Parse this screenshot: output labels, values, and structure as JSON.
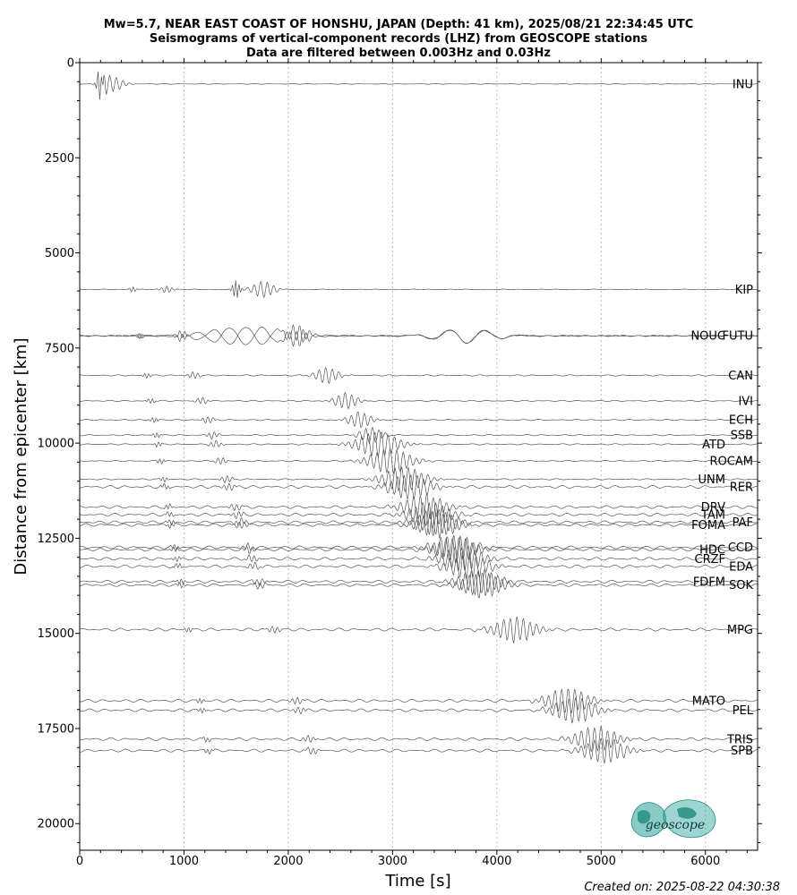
{
  "chart_data": {
    "type": "line",
    "title": [
      "Mw=5.7, NEAR EAST COAST OF HONSHU, JAPAN (Depth: 41 km), 2025/08/21 22:34:45 UTC",
      "Seismograms of vertical-component records (LHZ) from GEOSCOPE stations",
      "Data are filtered between 0.003Hz and 0.03Hz"
    ],
    "xlabel": "Time [s]",
    "ylabel": "Distance from epicenter [km]",
    "xlim": [
      0,
      6500
    ],
    "ylim": [
      20700,
      0
    ],
    "xticks": [
      0,
      1000,
      2000,
      3000,
      4000,
      5000,
      6000
    ],
    "yticks": [
      0,
      2500,
      5000,
      7500,
      10000,
      12500,
      15000,
      17500,
      20000
    ],
    "x_grid": true,
    "y_grid": false,
    "footer": "Created on: 2025-08-22 04:30:38",
    "logo_text": "geoscope",
    "logo_color": "#2aa296",
    "trace_color": "#555555",
    "stations": [
      {
        "name": "INU",
        "distance": 560,
        "label_right": true
      },
      {
        "name": "KIP",
        "distance": 5960,
        "label_right": true
      },
      {
        "name": "NOUC",
        "distance": 7180,
        "label_right": false
      },
      {
        "name": "FUTU",
        "distance": 7180,
        "label_right": true
      },
      {
        "name": "CAN",
        "distance": 8220,
        "label_right": true
      },
      {
        "name": "IVI",
        "distance": 8890,
        "label_right": true
      },
      {
        "name": "ECH",
        "distance": 9390,
        "label_right": true
      },
      {
        "name": "SSB",
        "distance": 9790,
        "label_right": true
      },
      {
        "name": "ATD",
        "distance": 10030,
        "label_right": false
      },
      {
        "name": "ROCAM",
        "distance": 10470,
        "label_right": true
      },
      {
        "name": "UNM",
        "distance": 10950,
        "label_right": false
      },
      {
        "name": "RER",
        "distance": 11150,
        "label_right": true
      },
      {
        "name": "DRV",
        "distance": 11680,
        "label_right": false
      },
      {
        "name": "TAM",
        "distance": 11880,
        "label_right": false
      },
      {
        "name": "PAF",
        "distance": 12080,
        "label_right": true
      },
      {
        "name": "FOMA",
        "distance": 12150,
        "label_right": false
      },
      {
        "name": "CCD",
        "distance": 12740,
        "label_right": true
      },
      {
        "name": "HDC",
        "distance": 12800,
        "label_right": false
      },
      {
        "name": "CRZF",
        "distance": 13040,
        "label_right": false
      },
      {
        "name": "EDA",
        "distance": 13240,
        "label_right": true
      },
      {
        "name": "FDFM",
        "distance": 13640,
        "label_right": false
      },
      {
        "name": "SOK",
        "distance": 13730,
        "label_right": true
      },
      {
        "name": "MPG",
        "distance": 14900,
        "label_right": true
      },
      {
        "name": "MATO",
        "distance": 16770,
        "label_right": false
      },
      {
        "name": "PEL",
        "distance": 17020,
        "label_right": true
      },
      {
        "name": "TRIS",
        "distance": 17780,
        "label_right": true
      },
      {
        "name": "SPB",
        "distance": 18080,
        "label_right": true
      }
    ]
  }
}
